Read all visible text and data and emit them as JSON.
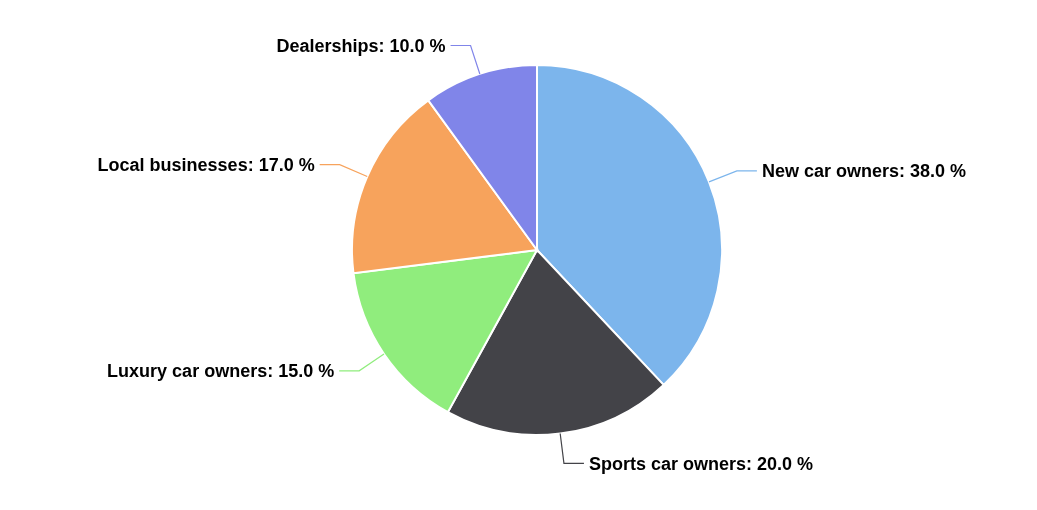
{
  "chart_data": {
    "type": "pie",
    "categories": [
      "New car owners",
      "Sports car owners",
      "Luxury car owners",
      "Local businesses",
      "Dealerships"
    ],
    "values": [
      38.0,
      20.0,
      15.0,
      17.0,
      10.0
    ],
    "colors": [
      "#7cb5ec",
      "#434348",
      "#90ed7d",
      "#f7a35c",
      "#8085e9"
    ],
    "value_labels": [
      "38.0 %",
      "20.0 %",
      "15.0 %",
      "17.0 %",
      "10.0 %"
    ]
  }
}
